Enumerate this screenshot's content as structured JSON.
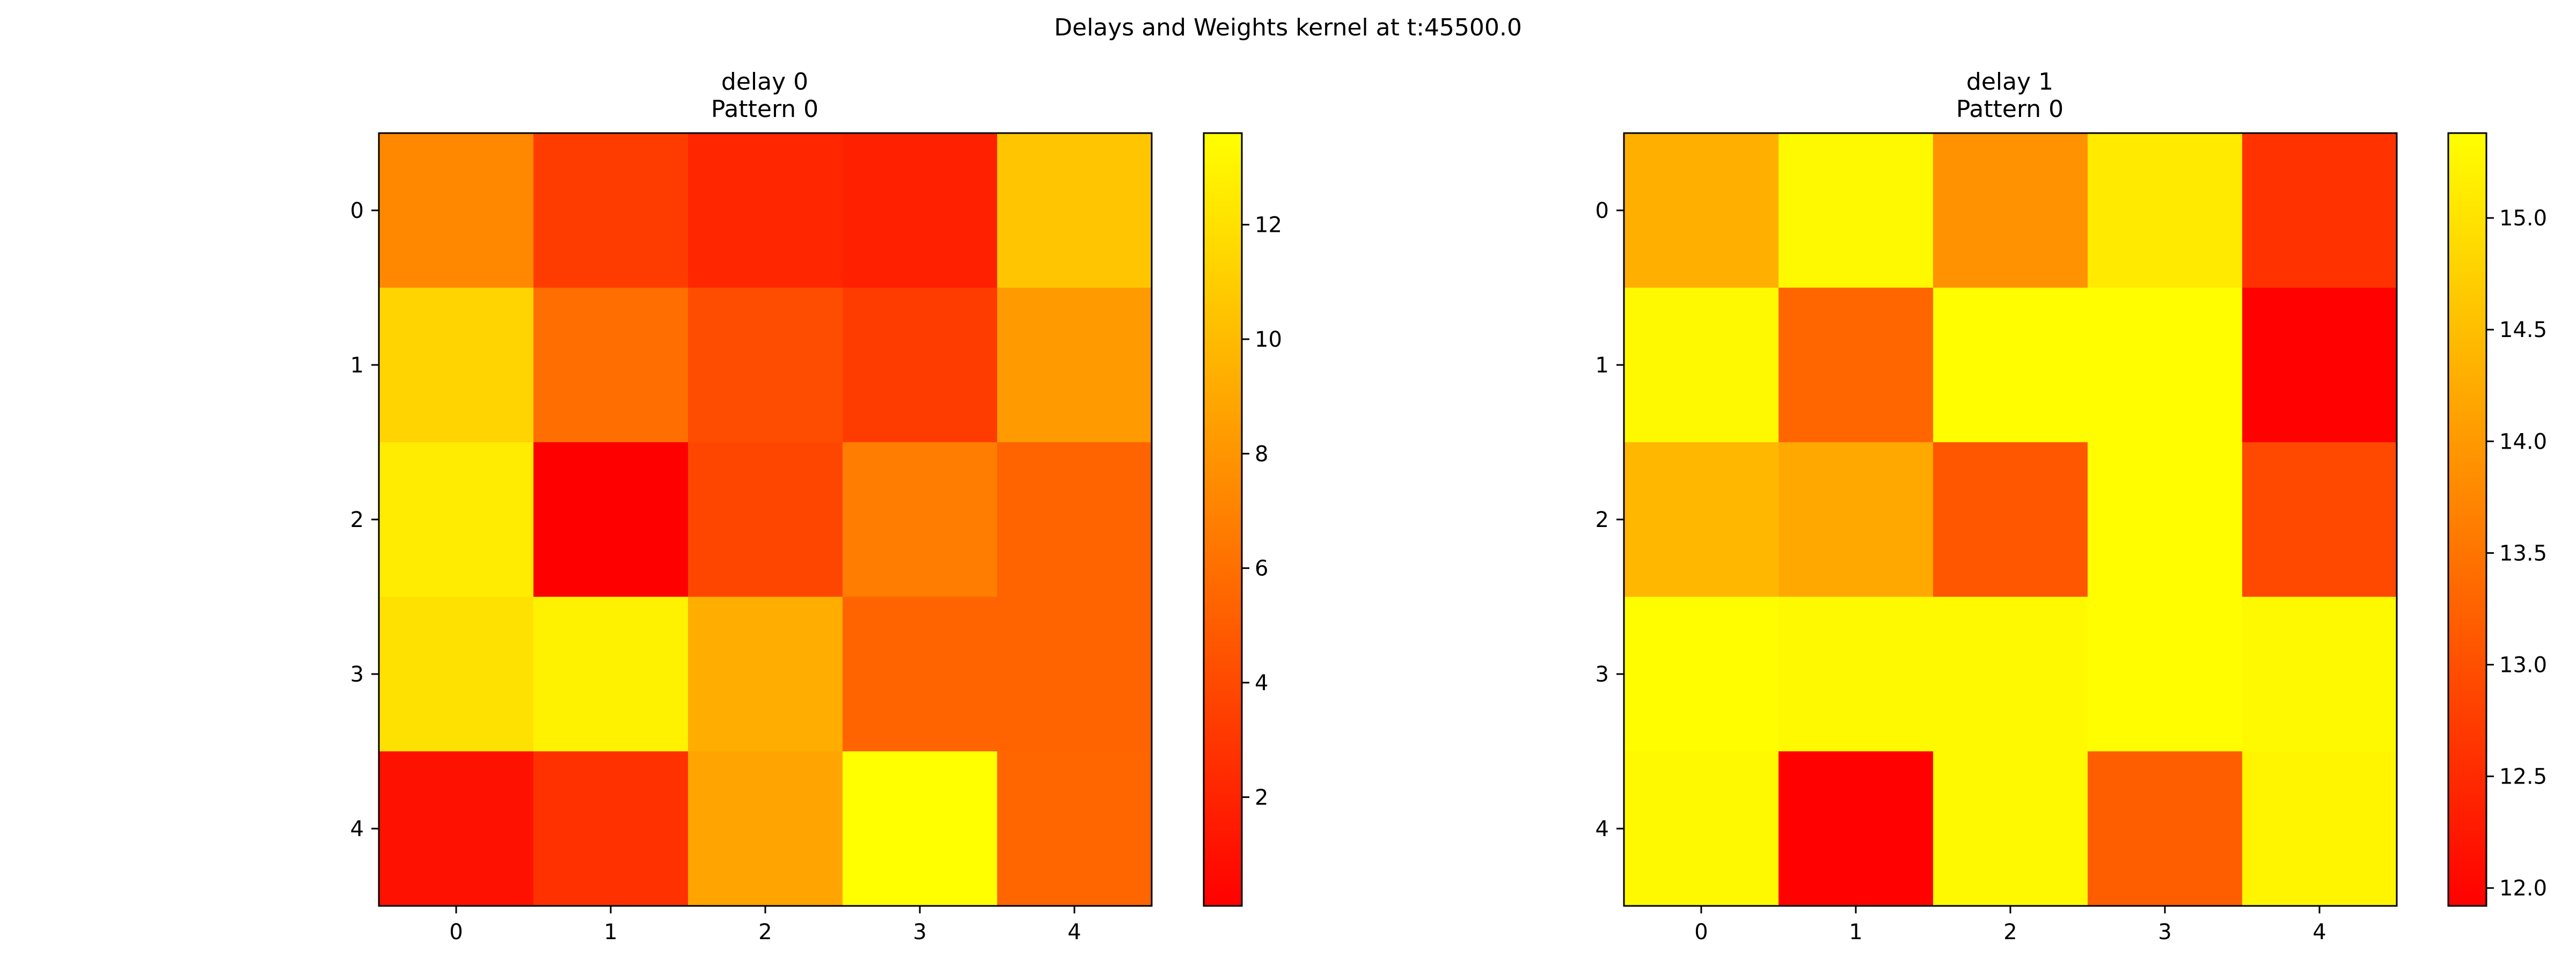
{
  "figure": {
    "suptitle": "Delays and Weights kernel at t:45500.0"
  },
  "chart_data": [
    {
      "type": "heatmap",
      "title": "delay 0",
      "subtitle": "Pattern 0",
      "x_ticks": [
        "0",
        "1",
        "2",
        "3",
        "4"
      ],
      "y_ticks": [
        "0",
        "1",
        "2",
        "3",
        "4"
      ],
      "colormap": "autumn",
      "colormap_range": [
        0.1,
        13.6
      ],
      "colorbar_ticks": [
        "2",
        "4",
        "6",
        "8",
        "10",
        "12"
      ],
      "colorbar_tick_values": [
        2,
        4,
        6,
        8,
        10,
        12
      ],
      "values": [
        [
          7.3,
          3.3,
          2.1,
          1.8,
          10.6
        ],
        [
          11.3,
          5.9,
          4.2,
          3.3,
          8.3
        ],
        [
          12.6,
          0.1,
          3.8,
          6.7,
          5.4
        ],
        [
          12.0,
          12.9,
          9.3,
          5.4,
          5.4
        ],
        [
          1.0,
          2.7,
          8.8,
          13.6,
          5.5
        ]
      ]
    },
    {
      "type": "heatmap",
      "title": "delay 1",
      "subtitle": "Pattern 0",
      "x_ticks": [
        "0",
        "1",
        "2",
        "3",
        "4"
      ],
      "y_ticks": [
        "0",
        "1",
        "2",
        "3",
        "4"
      ],
      "colormap": "autumn",
      "colormap_range": [
        11.92,
        15.38
      ],
      "colorbar_ticks": [
        "12.0",
        "12.5",
        "13.0",
        "13.5",
        "14.0",
        "14.5",
        "15.0"
      ],
      "colorbar_tick_values": [
        12.0,
        12.5,
        13.0,
        13.5,
        14.0,
        14.5,
        15.0
      ],
      "values": [
        [
          14.3,
          15.3,
          13.9,
          15.1,
          12.6
        ],
        [
          15.3,
          13.3,
          15.35,
          15.35,
          11.95
        ],
        [
          14.4,
          14.2,
          13.1,
          15.35,
          12.9
        ],
        [
          15.35,
          15.3,
          15.3,
          15.35,
          15.3
        ],
        [
          15.3,
          11.95,
          15.3,
          13.2,
          15.25
        ]
      ]
    }
  ]
}
